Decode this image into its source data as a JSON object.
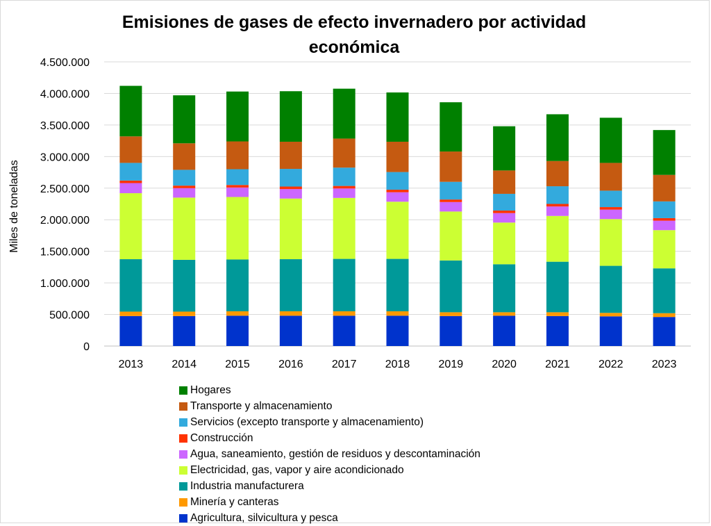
{
  "chart_data": {
    "type": "bar",
    "stacked": true,
    "title": "Emisiones de gases de efecto invernadero por actividad económica",
    "xlabel": "",
    "ylabel": "Miles de toneladas",
    "ylim": [
      0,
      4500000
    ],
    "yticks": [
      {
        "value": 0,
        "label": "0"
      },
      {
        "value": 500000,
        "label": "500.000"
      },
      {
        "value": 1000000,
        "label": "1.000.000"
      },
      {
        "value": 1500000,
        "label": "1.500.000"
      },
      {
        "value": 2000000,
        "label": "2.000.000"
      },
      {
        "value": 2500000,
        "label": "2.500.000"
      },
      {
        "value": 3000000,
        "label": "3.000.000"
      },
      {
        "value": 3500000,
        "label": "3.500.000"
      },
      {
        "value": 4000000,
        "label": "4.000.000"
      },
      {
        "value": 4500000,
        "label": "4.500.000"
      }
    ],
    "grid": true,
    "legend_position": "bottom",
    "categories": [
      "2013",
      "2014",
      "2015",
      "2016",
      "2017",
      "2018",
      "2019",
      "2020",
      "2021",
      "2022",
      "2023"
    ],
    "series": [
      {
        "name": "Agricultura, silvicultura y pesca",
        "color": "#0033cc",
        "values": [
          475000,
          475000,
          480000,
          480000,
          480000,
          480000,
          475000,
          480000,
          475000,
          470000,
          460000
        ]
      },
      {
        "name": "Minería y canteras",
        "color": "#ff9900",
        "values": [
          70000,
          70000,
          70000,
          70000,
          70000,
          70000,
          60000,
          55000,
          60000,
          55000,
          60000
        ]
      },
      {
        "name": "Industria manufacturera",
        "color": "#009999",
        "values": [
          830000,
          820000,
          820000,
          825000,
          830000,
          830000,
          820000,
          760000,
          800000,
          745000,
          710000
        ]
      },
      {
        "name": "Electricidad, gas, vapor y aire acondicionado",
        "color": "#ccff33",
        "values": [
          1045000,
          985000,
          990000,
          960000,
          965000,
          905000,
          775000,
          660000,
          725000,
          740000,
          605000
        ]
      },
      {
        "name": "Agua, saneamiento, gestión de residuos y descontaminación",
        "color": "#cc66ff",
        "values": [
          160000,
          150000,
          150000,
          150000,
          150000,
          150000,
          150000,
          150000,
          150000,
          150000,
          150000
        ]
      },
      {
        "name": "Construcción",
        "color": "#ff3300",
        "values": [
          40000,
          40000,
          40000,
          40000,
          40000,
          40000,
          40000,
          40000,
          40000,
          40000,
          40000
        ]
      },
      {
        "name": "Servicios (excepto transporte y almacenamiento)",
        "color": "#33aadd",
        "values": [
          280000,
          250000,
          250000,
          280000,
          290000,
          280000,
          280000,
          265000,
          280000,
          260000,
          265000
        ]
      },
      {
        "name": "Transporte y almacenamiento",
        "color": "#c55a11",
        "values": [
          420000,
          420000,
          440000,
          430000,
          460000,
          480000,
          480000,
          370000,
          400000,
          440000,
          420000
        ]
      },
      {
        "name": "Hogares",
        "color": "#008000",
        "values": [
          800000,
          760000,
          790000,
          800000,
          790000,
          780000,
          780000,
          700000,
          740000,
          715000,
          710000
        ]
      }
    ]
  }
}
